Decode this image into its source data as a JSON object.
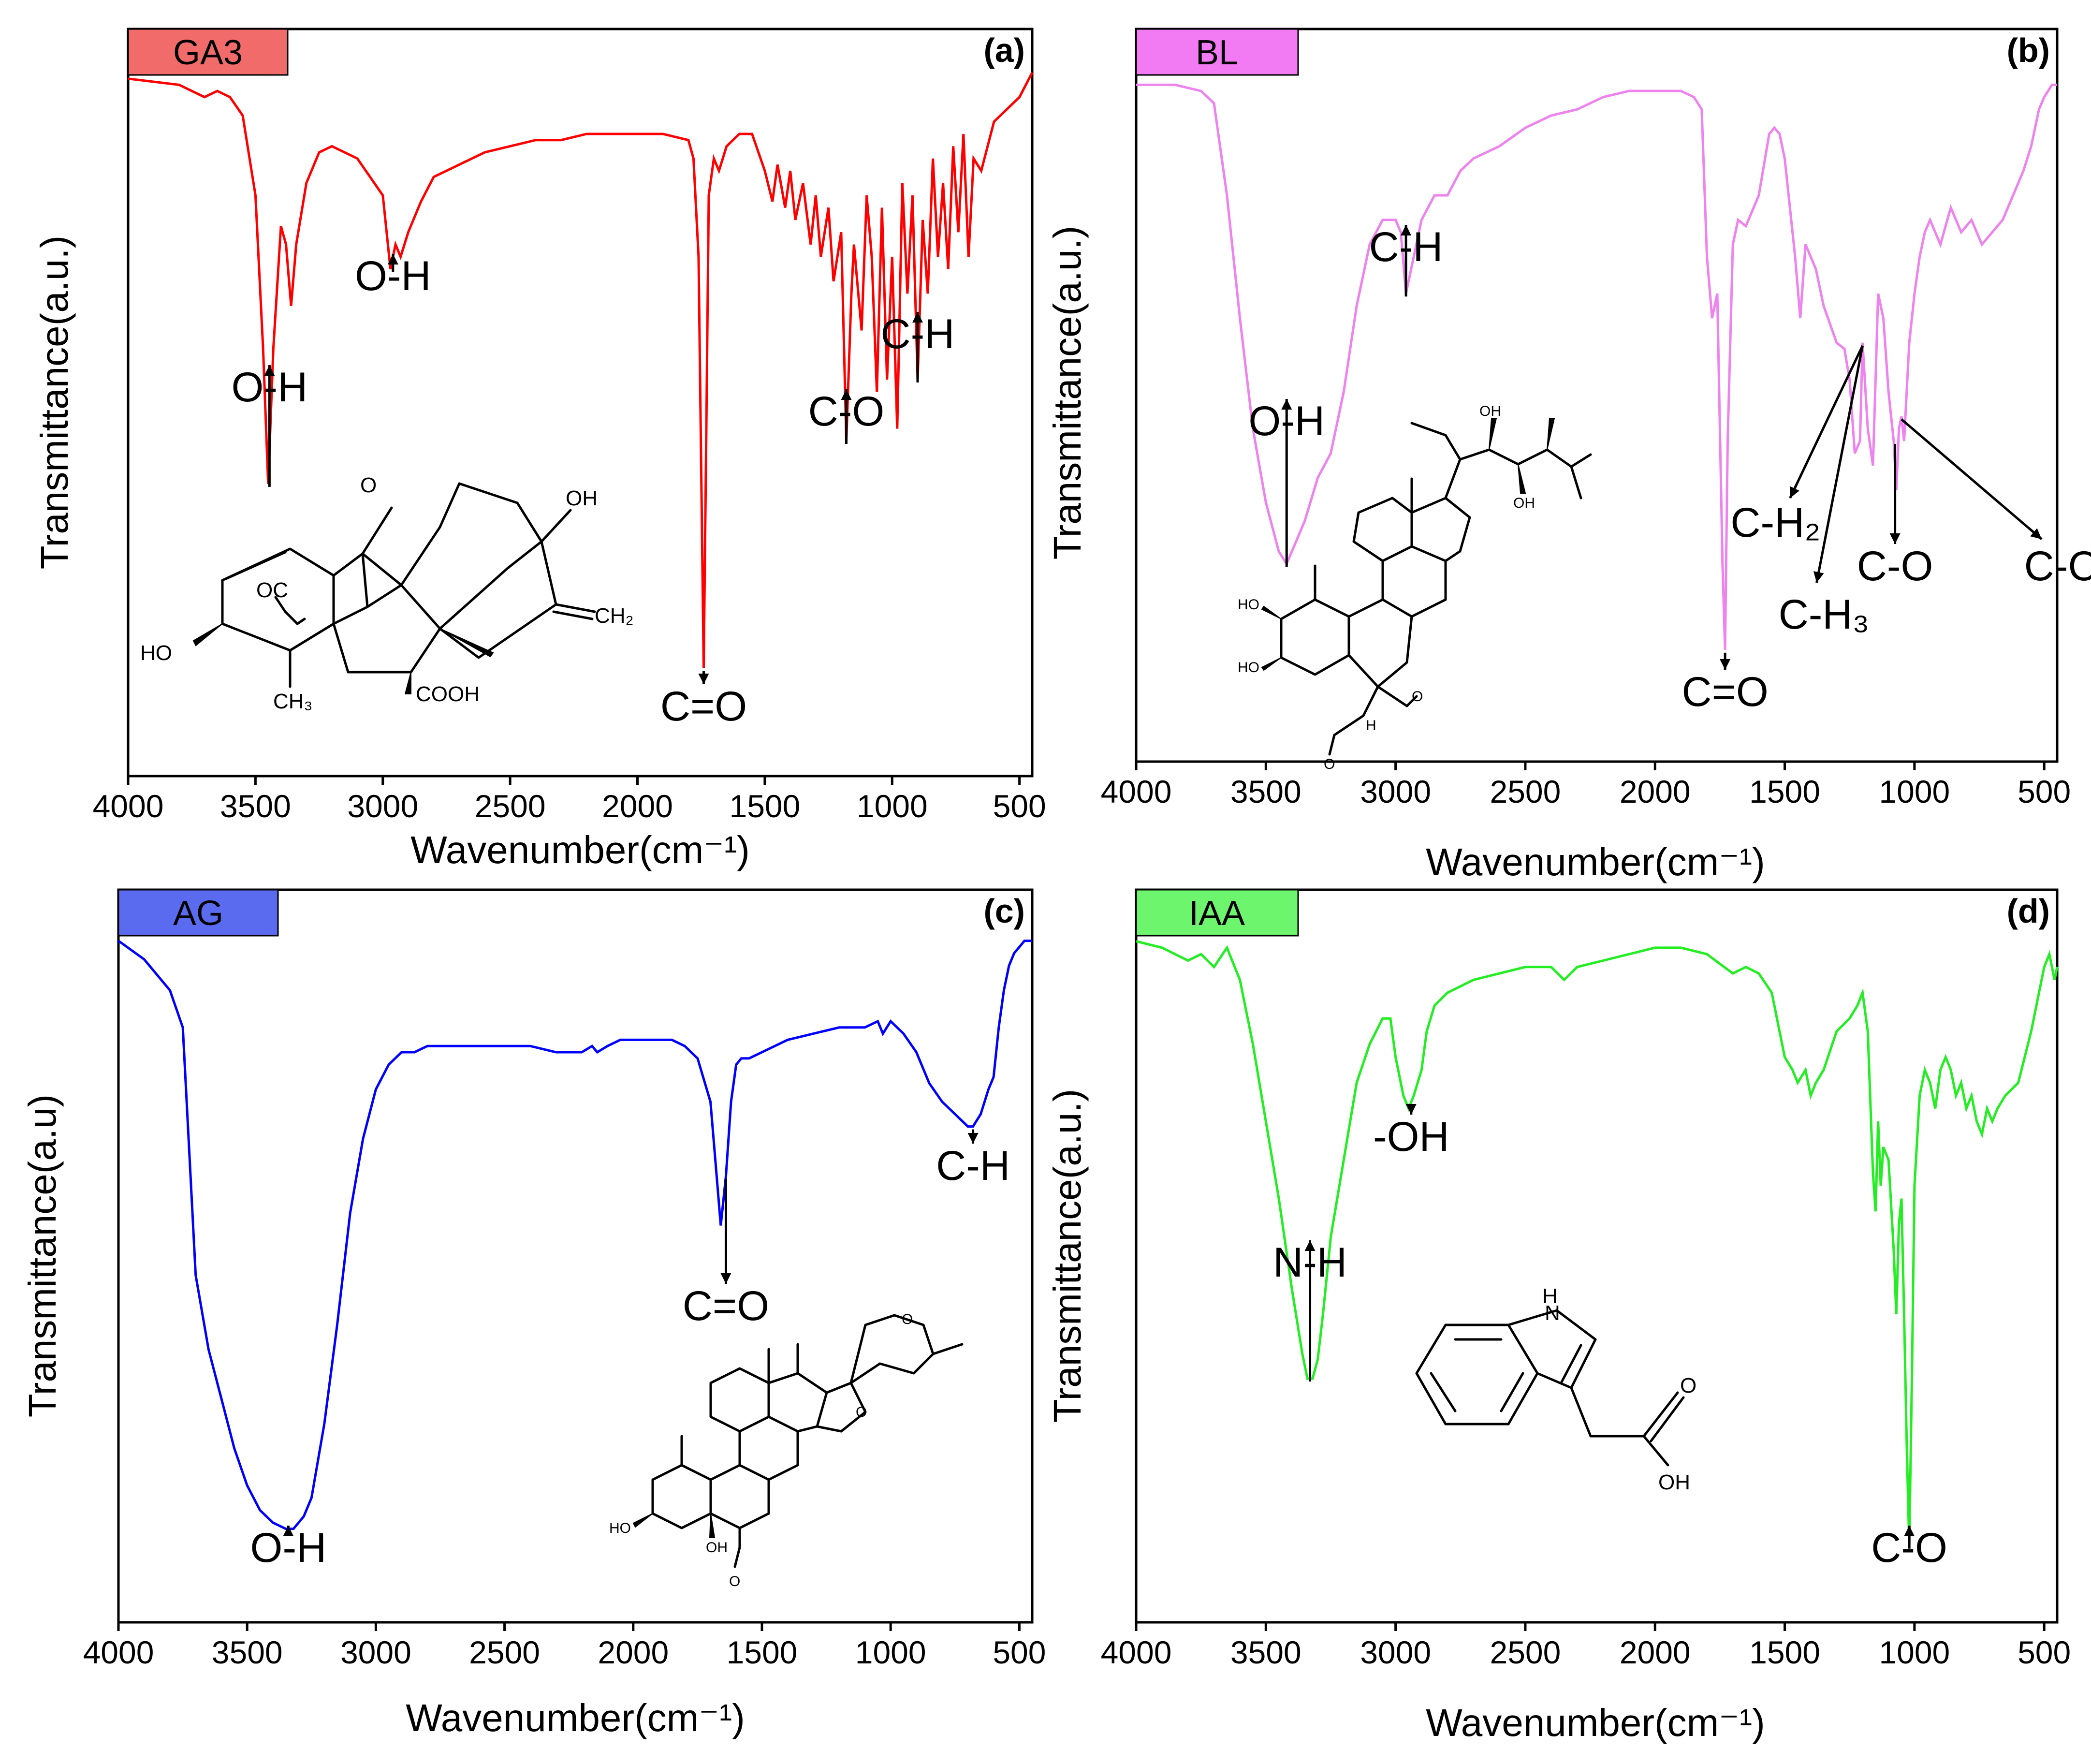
{
  "chart_data": [
    {
      "type": "line",
      "panel_letter": "(a)",
      "tag": "GA3",
      "tag_color": "#f26b6b",
      "line_color": "#ff0000",
      "xlabel": "Wavenumber(cm⁻¹)",
      "ylabel": "Transmittance(a.u.)",
      "xlim": [
        4000,
        450
      ],
      "ylim": [
        0,
        100
      ],
      "xticks": [
        4000,
        3500,
        3000,
        2500,
        2000,
        1500,
        1000,
        500
      ],
      "x": [
        4000,
        3800,
        3700,
        3650,
        3600,
        3550,
        3500,
        3470,
        3450,
        3430,
        3400,
        3380,
        3360,
        3340,
        3300,
        3250,
        3200,
        3100,
        3000,
        2970,
        2950,
        2930,
        2900,
        2850,
        2800,
        2700,
        2600,
        2500,
        2400,
        2300,
        2200,
        2100,
        2000,
        1900,
        1800,
        1780,
        1760,
        1740,
        1730,
        1720,
        1700,
        1680,
        1650,
        1600,
        1550,
        1500,
        1470,
        1450,
        1420,
        1400,
        1380,
        1350,
        1320,
        1300,
        1280,
        1250,
        1230,
        1200,
        1180,
        1160,
        1150,
        1120,
        1100,
        1080,
        1060,
        1040,
        1020,
        1000,
        980,
        960,
        940,
        920,
        900,
        880,
        860,
        840,
        820,
        800,
        780,
        760,
        740,
        720,
        700,
        680,
        650,
        600,
        550,
        500,
        450
      ],
      "y": [
        99,
        98,
        96,
        97,
        96,
        93,
        80,
        55,
        33,
        55,
        75,
        72,
        62,
        72,
        82,
        87,
        88,
        86,
        80,
        68,
        72,
        70,
        74,
        79,
        83,
        85,
        87,
        88,
        89,
        89,
        90,
        90,
        90,
        90,
        89,
        86,
        70,
        3,
        40,
        80,
        86,
        84,
        88,
        90,
        90,
        84,
        79,
        85,
        78,
        84,
        76,
        82,
        72,
        80,
        70,
        78,
        66,
        74,
        40,
        64,
        72,
        58,
        80,
        70,
        48,
        78,
        50,
        70,
        42,
        82,
        64,
        80,
        50,
        76,
        64,
        86,
        70,
        82,
        68,
        88,
        74,
        90,
        70,
        86,
        84,
        92,
        94,
        96,
        100
      ],
      "annotations": [
        {
          "text": "O-H",
          "x": 3445
        },
        {
          "text": "O-H",
          "x": 2960
        },
        {
          "text": "C=O",
          "x": 1740
        },
        {
          "text": "C-O",
          "x": 1180
        },
        {
          "text": "C-H",
          "x": 900
        }
      ]
    },
    {
      "type": "line",
      "panel_letter": "(b)",
      "tag": "BL",
      "tag_color": "#f27af2",
      "line_color": "#ee82ee",
      "xlabel": "Wavenumber(cm⁻¹)",
      "ylabel": "Transmittance(a.u.)",
      "xlim": [
        4000,
        450
      ],
      "ylim": [
        0,
        100
      ],
      "xticks": [
        4000,
        3500,
        3000,
        2500,
        2000,
        1500,
        1000,
        500
      ],
      "x": [
        4000,
        3850,
        3750,
        3700,
        3650,
        3600,
        3550,
        3500,
        3450,
        3420,
        3400,
        3350,
        3300,
        3250,
        3200,
        3150,
        3100,
        3050,
        3000,
        2980,
        2960,
        2940,
        2920,
        2900,
        2850,
        2800,
        2750,
        2700,
        2650,
        2600,
        2500,
        2400,
        2300,
        2200,
        2100,
        2000,
        1900,
        1850,
        1820,
        1800,
        1780,
        1760,
        1740,
        1730,
        1720,
        1700,
        1680,
        1650,
        1600,
        1560,
        1540,
        1520,
        1500,
        1460,
        1440,
        1420,
        1400,
        1380,
        1350,
        1300,
        1270,
        1250,
        1230,
        1210,
        1200,
        1180,
        1160,
        1150,
        1140,
        1120,
        1100,
        1080,
        1070,
        1060,
        1050,
        1040,
        1020,
        1000,
        980,
        960,
        940,
        900,
        860,
        820,
        780,
        740,
        700,
        660,
        620,
        580,
        550,
        520,
        500,
        470,
        450
      ],
      "y": [
        98,
        98,
        97,
        95,
        80,
        60,
        42,
        30,
        22,
        20,
        22,
        27,
        34,
        38,
        48,
        62,
        72,
        76,
        76,
        74,
        64,
        68,
        72,
        76,
        80,
        80,
        84,
        86,
        87,
        88,
        91,
        93,
        94,
        96,
        97,
        97,
        97,
        96,
        94,
        70,
        60,
        64,
        20,
        6,
        40,
        72,
        76,
        75,
        80,
        90,
        91,
        90,
        86,
        70,
        60,
        72,
        70,
        68,
        62,
        56,
        55,
        50,
        38,
        40,
        56,
        42,
        36,
        50,
        64,
        60,
        48,
        40,
        32,
        42,
        44,
        40,
        56,
        64,
        70,
        74,
        76,
        72,
        78,
        74,
        76,
        72,
        74,
        76,
        80,
        84,
        88,
        94,
        96,
        98,
        98
      ],
      "annotations": [
        {
          "text": "O-H",
          "x": 3420
        },
        {
          "text": "C-H",
          "x": 2960
        },
        {
          "text": "C=O",
          "x": 1730
        },
        {
          "text": "C-H₂",
          "x": 1200
        },
        {
          "text": "C-H₃",
          "x": 1200
        },
        {
          "text": "C-O",
          "x": 1075
        },
        {
          "text": "C-C",
          "x": 1050
        }
      ]
    },
    {
      "type": "line",
      "panel_letter": "(c)",
      "tag": "AG",
      "tag_color": "#5a6bef",
      "line_color": "#0000ff",
      "xlabel": "Wavenumber(cm⁻¹)",
      "ylabel": "Transmittance(a.u)",
      "xlim": [
        4000,
        450
      ],
      "ylim": [
        0,
        100
      ],
      "xticks": [
        4000,
        3500,
        3000,
        2500,
        2000,
        1500,
        1000,
        500
      ],
      "x": [
        4000,
        3900,
        3800,
        3750,
        3720,
        3700,
        3650,
        3600,
        3550,
        3500,
        3450,
        3400,
        3350,
        3320,
        3300,
        3280,
        3250,
        3200,
        3150,
        3100,
        3050,
        3000,
        2950,
        2900,
        2850,
        2800,
        2700,
        2600,
        2500,
        2400,
        2300,
        2200,
        2160,
        2140,
        2100,
        2050,
        2000,
        1950,
        1900,
        1850,
        1800,
        1750,
        1700,
        1680,
        1660,
        1640,
        1620,
        1600,
        1580,
        1550,
        1500,
        1400,
        1300,
        1200,
        1100,
        1050,
        1030,
        1000,
        950,
        900,
        850,
        800,
        750,
        700,
        680,
        650,
        620,
        600,
        580,
        560,
        540,
        520,
        500,
        480,
        460,
        450
      ],
      "y": [
        98,
        95,
        90,
        84,
        60,
        44,
        32,
        24,
        16,
        10,
        6,
        4,
        3,
        3,
        4,
        5,
        8,
        20,
        36,
        54,
        66,
        74,
        78,
        80,
        80,
        81,
        81,
        81,
        81,
        81,
        80,
        80,
        81,
        80,
        81,
        82,
        82,
        82,
        82,
        82,
        81,
        79,
        72,
        62,
        52,
        60,
        72,
        78,
        79,
        79,
        80,
        82,
        83,
        84,
        84,
        85,
        83,
        85,
        83,
        80,
        75,
        72,
        70,
        68,
        68,
        70,
        74,
        76,
        84,
        90,
        94,
        96,
        97,
        98,
        98,
        98
      ],
      "annotations": [
        {
          "text": "O-H",
          "x": 3340
        },
        {
          "text": "C=O",
          "x": 1640
        },
        {
          "text": "C-H",
          "x": 680
        }
      ]
    },
    {
      "type": "line",
      "panel_letter": "(d)",
      "tag": "IAA",
      "tag_color": "#6ef56e",
      "line_color": "#22ee22",
      "xlabel": "Wavenumber(cm⁻¹)",
      "ylabel": "Transmittance(a.u.)",
      "xlim": [
        4000,
        450
      ],
      "ylim": [
        0,
        100
      ],
      "xticks": [
        4000,
        3500,
        3000,
        2500,
        2000,
        1500,
        1000,
        500
      ],
      "x": [
        4000,
        3900,
        3800,
        3750,
        3700,
        3650,
        3600,
        3550,
        3500,
        3450,
        3400,
        3360,
        3340,
        3320,
        3300,
        3280,
        3250,
        3200,
        3150,
        3100,
        3050,
        3020,
        3000,
        2970,
        2950,
        2930,
        2900,
        2880,
        2850,
        2800,
        2700,
        2600,
        2500,
        2400,
        2350,
        2300,
        2200,
        2100,
        2000,
        1900,
        1800,
        1700,
        1650,
        1600,
        1550,
        1500,
        1470,
        1450,
        1420,
        1400,
        1380,
        1350,
        1300,
        1250,
        1220,
        1200,
        1180,
        1160,
        1150,
        1140,
        1130,
        1120,
        1100,
        1080,
        1070,
        1060,
        1050,
        1040,
        1030,
        1020,
        1010,
        1000,
        980,
        960,
        940,
        920,
        900,
        880,
        860,
        840,
        820,
        800,
        780,
        760,
        740,
        720,
        700,
        680,
        650,
        600,
        550,
        520,
        500,
        480,
        460,
        450
      ],
      "y": [
        98,
        97,
        95,
        96,
        94,
        97,
        92,
        82,
        70,
        58,
        44,
        34,
        30,
        30,
        33,
        40,
        52,
        64,
        76,
        82,
        86,
        86,
        80,
        74,
        72,
        74,
        78,
        84,
        88,
        90,
        92,
        93,
        94,
        94,
        92,
        94,
        95,
        96,
        97,
        97,
        96,
        93,
        94,
        93,
        90,
        80,
        78,
        76,
        78,
        74,
        76,
        78,
        84,
        86,
        88,
        90,
        84,
        62,
        56,
        70,
        60,
        66,
        64,
        50,
        40,
        54,
        58,
        40,
        20,
        4,
        30,
        60,
        74,
        78,
        76,
        72,
        78,
        80,
        78,
        74,
        76,
        72,
        74,
        70,
        68,
        72,
        70,
        72,
        74,
        76,
        84,
        90,
        94,
        96,
        92,
        94
      ],
      "annotations": [
        {
          "text": "N-H",
          "x": 3330
        },
        {
          "text": "-OH",
          "x": 2940
        },
        {
          "text": "C-O",
          "x": 1020
        }
      ]
    }
  ],
  "molecules": {
    "ga3": {
      "labels": [
        "O",
        "OH",
        "OC",
        "CH₂",
        "HO",
        "CH₃",
        "COOH"
      ]
    },
    "bl": {
      "labels": [
        "OH",
        "OH",
        "HO",
        "HO",
        "O",
        "O",
        "H"
      ]
    },
    "ag": {
      "labels": [
        "O",
        "O",
        "HO",
        "OH",
        "O"
      ]
    },
    "iaa": {
      "labels": [
        "H",
        "N",
        "O",
        "OH"
      ]
    }
  }
}
